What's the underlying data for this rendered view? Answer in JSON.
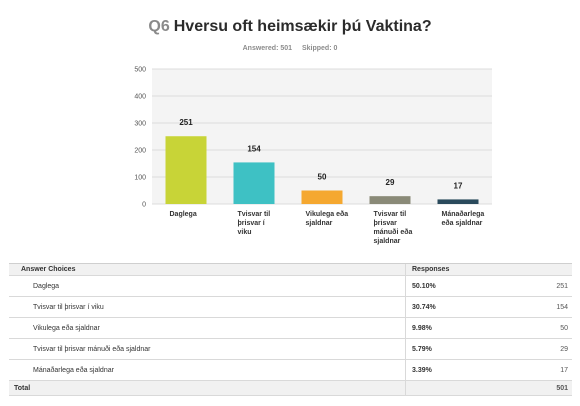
{
  "question": {
    "number": "Q6",
    "text": "Hversu oft heimsækir þú Vaktina?"
  },
  "meta": {
    "answered": "Answered: 501",
    "skipped": "Skipped: 0"
  },
  "chart_data": {
    "type": "bar",
    "categories": [
      [
        "Daglega"
      ],
      [
        "Tvisvar til",
        "þrisvar í",
        "viku"
      ],
      [
        "Vikulega eða",
        "sjaldnar"
      ],
      [
        "Tvisvar til",
        "þrisvar",
        "mánuði eða",
        "sjaldnar"
      ],
      [
        "Mánaðarlega",
        "eða sjaldnar"
      ]
    ],
    "values": [
      251,
      154,
      50,
      29,
      17
    ],
    "colors": [
      "#c8d437",
      "#3ec1c4",
      "#f5a830",
      "#8a8a78",
      "#2a4a5c"
    ],
    "ylim": [
      0,
      500
    ],
    "yticks": [
      0,
      100,
      200,
      300,
      400,
      500
    ],
    "grid": true,
    "legend": "none"
  },
  "table": {
    "header": {
      "choices": "Answer Choices",
      "responses": "Responses"
    },
    "rows": [
      {
        "label": "Daglega",
        "percent": "50.10%",
        "count": "251"
      },
      {
        "label": "Tvisvar til þrisvar í viku",
        "percent": "30.74%",
        "count": "154"
      },
      {
        "label": "Vikulega eða sjaldnar",
        "percent": "9.98%",
        "count": "50"
      },
      {
        "label": "Tvisvar til þrisvar mánuði eða sjaldnar",
        "percent": "5.79%",
        "count": "29"
      },
      {
        "label": "Mánaðarlega eða sjaldnar",
        "percent": "3.39%",
        "count": "17"
      }
    ],
    "total": {
      "label": "Total",
      "count": "501"
    }
  }
}
